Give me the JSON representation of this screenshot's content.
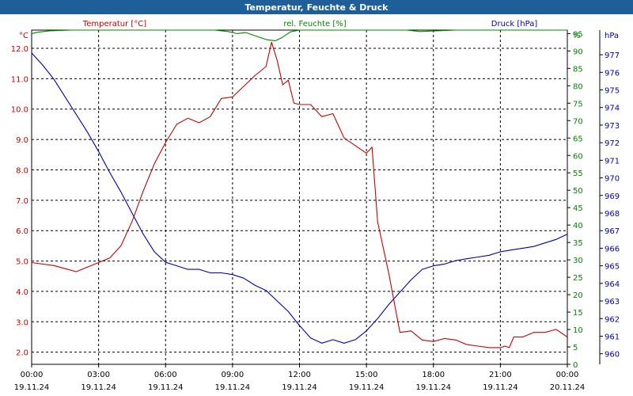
{
  "window": {
    "title": "Temperatur, Feuchte & Druck"
  },
  "colors": {
    "titlebar": "#1f5f99",
    "temperature": "#cc0000",
    "humidity": "#008800",
    "pressure": "#0000bb",
    "grid": "#000000",
    "text": "#000000"
  },
  "chart_data": {
    "type": "line",
    "title": "Temperatur, Feuchte & Druck",
    "grid": true,
    "x_ticks": [
      {
        "time": "00:00",
        "date": "19.11.24"
      },
      {
        "time": "03:00",
        "date": "19.11.24"
      },
      {
        "time": "06:00",
        "date": "19.11.24"
      },
      {
        "time": "09:00",
        "date": "19.11.24"
      },
      {
        "time": "12:00",
        "date": "19.11.24"
      },
      {
        "time": "15:00",
        "date": "19.11.24"
      },
      {
        "time": "18:00",
        "date": "19.11.24"
      },
      {
        "time": "21:00",
        "date": "19.11.24"
      },
      {
        "time": "00:00",
        "date": "20.11.24"
      }
    ],
    "axes": {
      "temperature": {
        "label": "Temperatur [°C]",
        "unit": "°C",
        "side": "left",
        "ylim": [
          1.6,
          12.6
        ],
        "ticks": [
          "2.0",
          "3.0",
          "4.0",
          "5.0",
          "6.0",
          "7.0",
          "8.0",
          "9.0",
          "10.0",
          "11.0",
          "12.0"
        ]
      },
      "humidity": {
        "label": "rel. Feuchte [%]",
        "unit": "%",
        "side": "right",
        "ylim": [
          0,
          96
        ],
        "ticks": [
          "0",
          "5",
          "10",
          "15",
          "20",
          "25",
          "30",
          "35",
          "40",
          "45",
          "50",
          "55",
          "60",
          "65",
          "70",
          "75",
          "80",
          "85",
          "90",
          "95"
        ]
      },
      "pressure": {
        "label": "Druck [hPa]",
        "unit": "hPa",
        "side": "right",
        "ylim": [
          959.4,
          978.4
        ],
        "ticks": [
          "960",
          "961",
          "962",
          "963",
          "964",
          "965",
          "966",
          "967",
          "968",
          "969",
          "970",
          "971",
          "972",
          "973",
          "974",
          "975",
          "976",
          "977"
        ]
      }
    },
    "series": [
      {
        "name": "Temperatur [°C]",
        "axis": "temperature",
        "color": "#cc0000",
        "x": [
          0,
          1,
          1.5,
          2,
          2.5,
          3,
          3.5,
          4,
          4.5,
          5,
          5.5,
          6,
          6.5,
          7,
          7.5,
          8,
          8.5,
          9,
          9.5,
          10,
          10.5,
          10.75,
          11,
          11.25,
          11.5,
          11.75,
          12,
          12.5,
          13,
          13.5,
          14,
          14.5,
          15,
          15.25,
          15.5,
          16,
          16.5,
          17,
          17.5,
          18,
          18.5,
          19,
          19.5,
          20,
          20.5,
          21,
          21.2,
          21.4,
          21.6,
          22,
          22.5,
          23,
          23.5,
          24
        ],
        "values": [
          4.95,
          4.85,
          4.75,
          4.65,
          4.8,
          4.95,
          5.1,
          5.5,
          6.3,
          7.3,
          8.2,
          8.9,
          9.5,
          9.7,
          9.55,
          9.75,
          10.35,
          10.4,
          10.75,
          11.1,
          11.4,
          12.2,
          11.6,
          10.8,
          10.95,
          10.2,
          10.15,
          10.15,
          9.75,
          9.85,
          9.05,
          8.8,
          8.55,
          8.75,
          6.3,
          4.6,
          2.65,
          2.7,
          2.4,
          2.35,
          2.45,
          2.4,
          2.25,
          2.2,
          2.15,
          2.15,
          2.2,
          2.15,
          2.5,
          2.5,
          2.65,
          2.65,
          2.75,
          2.5
        ]
      },
      {
        "name": "rel. Feuchte [%]",
        "axis": "humidity",
        "color": "#008800",
        "x": [
          0,
          0.3,
          0.8,
          1.8,
          8.2,
          8.8,
          9.2,
          9.6,
          10,
          10.5,
          10.9,
          11.2,
          11.6,
          12,
          16.8,
          17.4,
          19,
          24
        ],
        "values": [
          95,
          95.4,
          95.8,
          96,
          96,
          95.6,
          95,
          95.3,
          94.4,
          93.3,
          92.9,
          93.8,
          95.5,
          96,
          96,
          95.6,
          96,
          96
        ]
      },
      {
        "name": "Druck [hPa]",
        "axis": "pressure",
        "color": "#0000bb",
        "x": [
          0,
          0.5,
          1,
          1.5,
          2,
          2.5,
          3,
          3.5,
          4,
          4.5,
          5,
          5.5,
          6,
          6.5,
          7,
          7.5,
          8,
          8.5,
          9,
          9.5,
          10,
          10.5,
          11,
          11.5,
          12,
          12.5,
          13,
          13.5,
          14,
          14.5,
          15,
          15.5,
          16,
          16.5,
          17,
          17.5,
          18,
          18.5,
          19,
          19.5,
          20,
          20.5,
          21,
          21.5,
          22,
          22.5,
          23,
          23.5,
          24
        ],
        "values": [
          977.1,
          976.4,
          975.6,
          974.6,
          973.6,
          972.6,
          971.5,
          970.3,
          969.2,
          968.0,
          966.8,
          965.8,
          965.2,
          965.0,
          964.8,
          964.8,
          964.6,
          964.6,
          964.5,
          964.3,
          963.9,
          963.6,
          963.0,
          962.4,
          961.6,
          960.9,
          960.6,
          960.8,
          960.6,
          960.8,
          961.3,
          962.0,
          962.8,
          963.5,
          964.2,
          964.8,
          965.0,
          965.1,
          965.3,
          965.4,
          965.5,
          965.6,
          965.8,
          965.9,
          966.0,
          966.1,
          966.3,
          966.5,
          966.8
        ]
      }
    ]
  }
}
